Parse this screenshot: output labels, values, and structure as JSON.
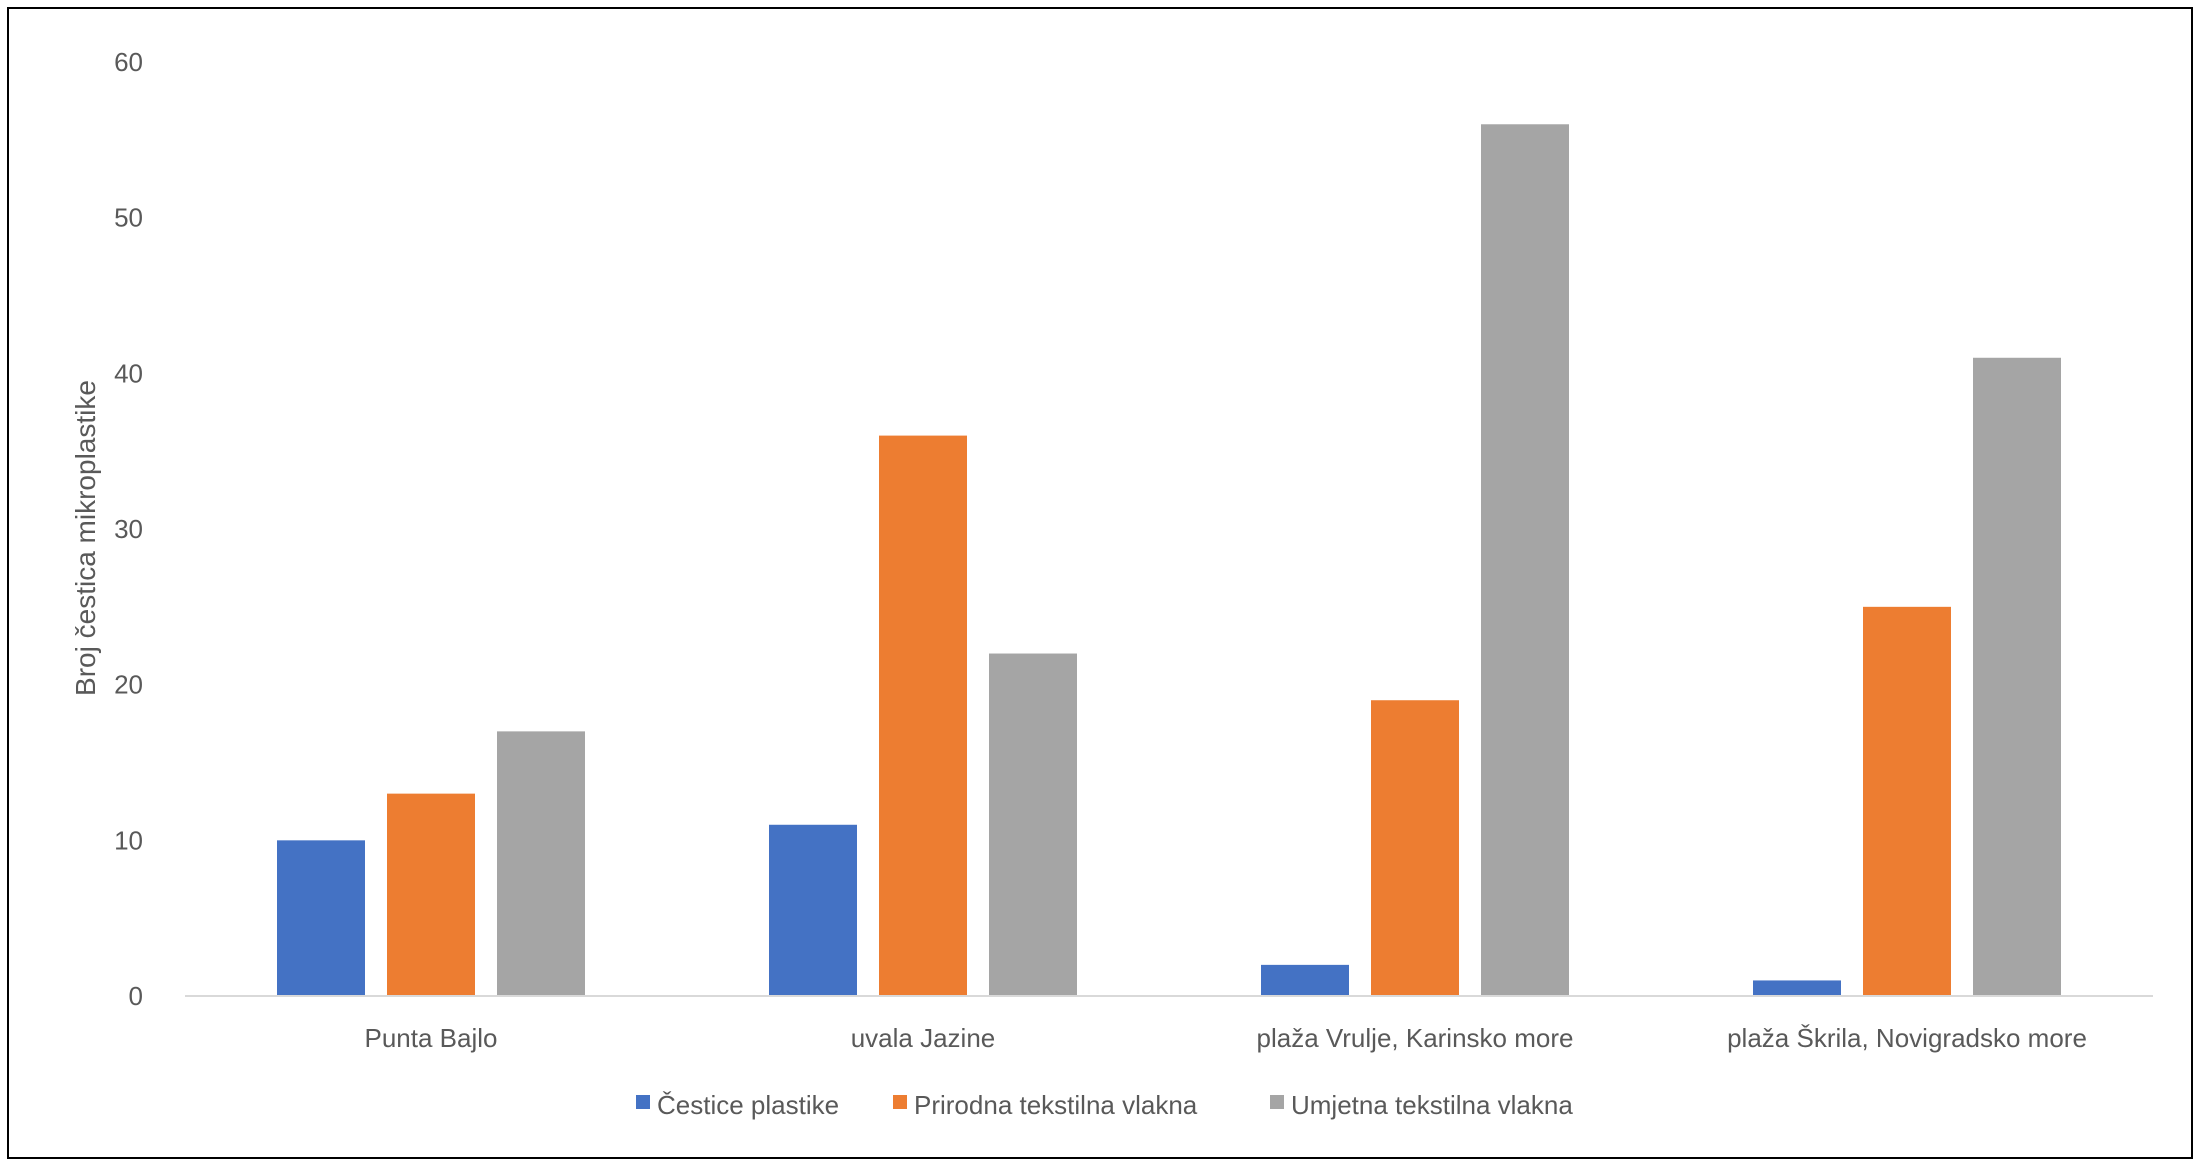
{
  "chart_data": {
    "type": "bar",
    "title": "",
    "xlabel": "",
    "ylabel": "Broj čestica mikroplastike",
    "ylim": [
      0,
      60
    ],
    "yticks": [
      0,
      10,
      20,
      30,
      40,
      50,
      60
    ],
    "grid": false,
    "legend_position": "bottom",
    "categories": [
      "Punta Bajlo",
      "uvala Jazine",
      "plaža Vrulje, Karinsko more",
      "plaža Škrila, Novigradsko more"
    ],
    "series": [
      {
        "name": "Čestice plastike",
        "color": "#4472C4",
        "values": [
          10,
          11,
          2,
          1
        ]
      },
      {
        "name": "Prirodna tekstilna vlakna",
        "color": "#ED7D31",
        "values": [
          13,
          36,
          19,
          25
        ]
      },
      {
        "name": "Umjetna tekstilna vlakna",
        "color": "#A5A5A5",
        "values": [
          17,
          22,
          56,
          41
        ]
      }
    ]
  }
}
